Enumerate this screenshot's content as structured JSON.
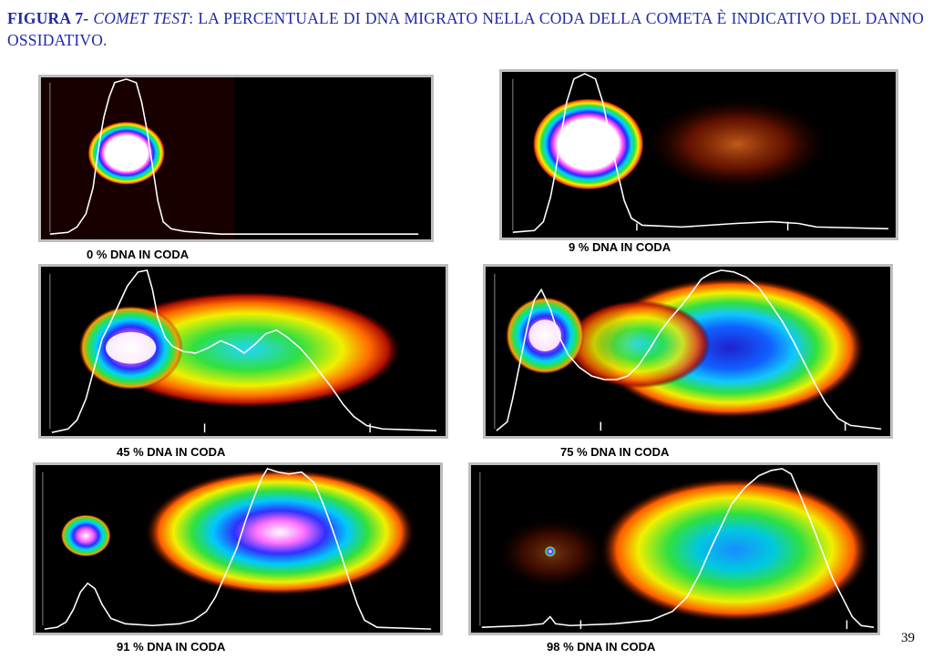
{
  "caption": {
    "figure_label": "FIGURA 7-",
    "italic_term": "COMET TEST",
    "text": ": LA PERCENTUALE  DI DNA MIGRATO NELLA  CODA DELLA COMETA È INDICATIVO DEL DANNO OSSIDATIVO."
  },
  "panels": [
    {
      "label": "0 % DNA IN CODA",
      "tail_dna_percent": 0
    },
    {
      "label": "9 % DNA IN CODA",
      "tail_dna_percent": 9
    },
    {
      "label": "45 % DNA IN CODA",
      "tail_dna_percent": 45
    },
    {
      "label": "75 % DNA IN CODA",
      "tail_dna_percent": 75
    },
    {
      "label": "91 % DNA IN CODA",
      "tail_dna_percent": 91
    },
    {
      "label": "98 % DNA IN CODA",
      "tail_dna_percent": 98
    }
  ],
  "page_number": "39"
}
